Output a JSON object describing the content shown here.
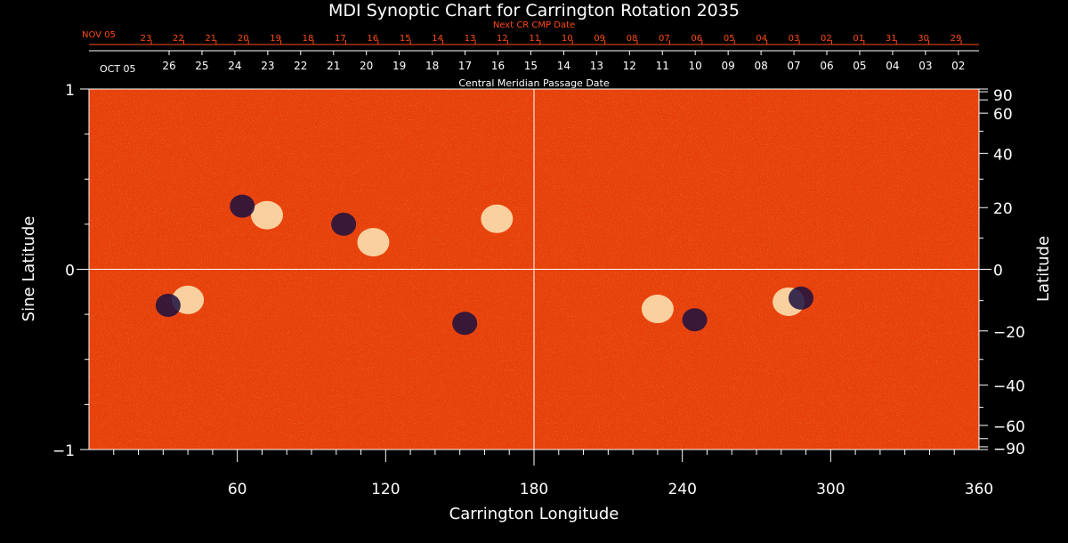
{
  "chart_data": {
    "type": "heatmap",
    "title": "MDI Synoptic Chart for Carrington Rotation 2035",
    "xlabel": "Carrington Longitude",
    "ylabel_left": "Sine Latitude",
    "ylabel_right": "Latitude",
    "xlim": [
      0,
      360
    ],
    "ylim": [
      -1,
      1
    ],
    "x_ticks": [
      60,
      120,
      180,
      240,
      300,
      360
    ],
    "left_ticks": [
      {
        "value": 1,
        "label": "1"
      },
      {
        "value": 0,
        "label": "0"
      },
      {
        "value": -1,
        "label": "−1"
      }
    ],
    "right_ticks": [
      {
        "lat": 90,
        "label": "90"
      },
      {
        "lat": 60,
        "label": "60"
      },
      {
        "lat": 40,
        "label": "40"
      },
      {
        "lat": 20,
        "label": "20"
      },
      {
        "lat": 0,
        "label": "0"
      },
      {
        "lat": -20,
        "label": "−20"
      },
      {
        "lat": -40,
        "label": "−40"
      },
      {
        "lat": -60,
        "label": "−60"
      },
      {
        "lat": -90,
        "label": "−90"
      }
    ],
    "center_meridian_line": 180,
    "equator_line": 0,
    "next_cr_axis": {
      "label": "Next CR CMP Date",
      "start_label": "NOV 05",
      "dates": [
        "23",
        "22",
        "21",
        "20",
        "19",
        "18",
        "17",
        "16",
        "15",
        "14",
        "13",
        "12",
        "11",
        "10",
        "09",
        "08",
        "07",
        "06",
        "05",
        "04",
        "03",
        "02",
        "01",
        "31",
        "30",
        "29"
      ],
      "color": "#ff4a14"
    },
    "cmp_axis": {
      "label": "Central Meridian Passage Date",
      "start_label": "OCT 05",
      "dates": [
        "26",
        "25",
        "24",
        "23",
        "22",
        "21",
        "20",
        "19",
        "18",
        "17",
        "16",
        "15",
        "14",
        "13",
        "12",
        "11",
        "10",
        "09",
        "08",
        "07",
        "06",
        "05",
        "04",
        "03",
        "02"
      ]
    },
    "active_regions": [
      {
        "lon": 40,
        "sinlat": -0.17,
        "polarity": "positive"
      },
      {
        "lon": 32,
        "sinlat": -0.2,
        "polarity": "negative"
      },
      {
        "lon": 115,
        "sinlat": 0.15,
        "polarity": "positive"
      },
      {
        "lon": 103,
        "sinlat": 0.25,
        "polarity": "negative"
      },
      {
        "lon": 72,
        "sinlat": 0.3,
        "polarity": "positive"
      },
      {
        "lon": 62,
        "sinlat": 0.35,
        "polarity": "negative"
      },
      {
        "lon": 230,
        "sinlat": -0.22,
        "polarity": "positive"
      },
      {
        "lon": 245,
        "sinlat": -0.28,
        "polarity": "negative"
      },
      {
        "lon": 283,
        "sinlat": -0.18,
        "polarity": "positive"
      },
      {
        "lon": 288,
        "sinlat": -0.16,
        "polarity": "negative"
      },
      {
        "lon": 152,
        "sinlat": -0.3,
        "polarity": "negative"
      },
      {
        "lon": 165,
        "sinlat": 0.28,
        "polarity": "positive"
      }
    ],
    "colors": {
      "background": "#e8400a",
      "positive": "#ffffd0",
      "negative": "#1a1040",
      "axis": "#ffffff"
    }
  }
}
